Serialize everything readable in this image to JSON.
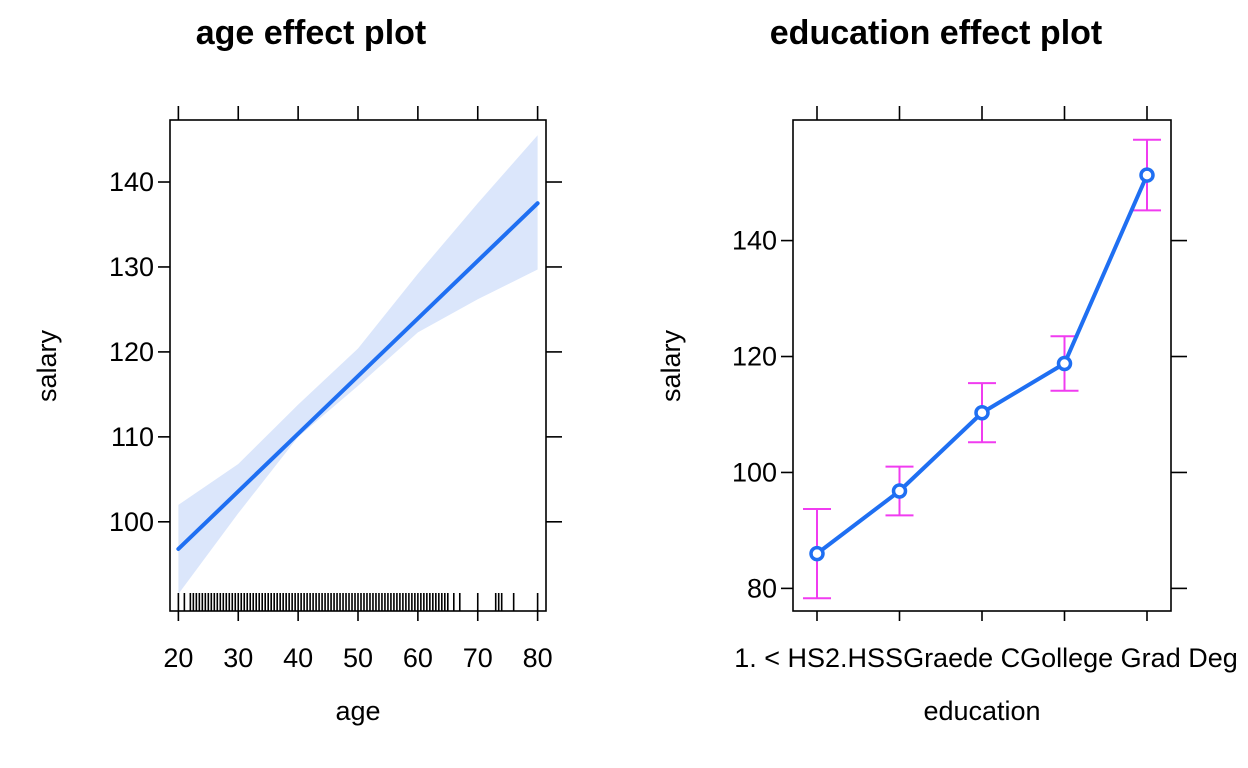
{
  "colors": {
    "line": "#1f6ff2",
    "band": "#dbe6fb",
    "error_bar": "#f03cf0",
    "frame": "#000000"
  },
  "chart_data": [
    {
      "type": "line",
      "title": "age effect plot",
      "xlabel": "age",
      "ylabel": "salary",
      "xlim": [
        18.6,
        81.4
      ],
      "ylim": [
        89.5,
        147.3
      ],
      "x_ticks": [
        20,
        30,
        40,
        50,
        60,
        70,
        80
      ],
      "y_ticks": [
        100,
        110,
        120,
        130,
        140
      ],
      "series": [
        {
          "x": [
            20,
            80
          ],
          "y": [
            96.8,
            137.5
          ],
          "band_x": [
            20,
            30,
            40,
            50,
            60,
            70,
            80
          ],
          "band_lower": [
            91.5,
            101.0,
            110.0,
            116.0,
            122.3,
            126.2,
            129.7
          ],
          "band_upper": [
            102.0,
            106.8,
            113.8,
            120.4,
            129.2,
            137.5,
            145.5
          ]
        }
      ],
      "rug": [
        20,
        21,
        22,
        22.5,
        23,
        23.5,
        24,
        24.5,
        25,
        25.5,
        26,
        26.5,
        27,
        27.5,
        28,
        28.5,
        29,
        29.5,
        30,
        30.5,
        31,
        31.5,
        32,
        32.5,
        33,
        33.5,
        34,
        34.5,
        35,
        35.5,
        36,
        36.5,
        37,
        37.5,
        38,
        38.5,
        39,
        39.5,
        40,
        40.5,
        41,
        41.5,
        42,
        42.5,
        43,
        43.5,
        44,
        44.5,
        45,
        45.5,
        46,
        46.5,
        47,
        47.5,
        48,
        48.5,
        49,
        49.5,
        50,
        50.5,
        51,
        51.5,
        52,
        52.5,
        53,
        53.5,
        54,
        54.5,
        55,
        55.5,
        56,
        56.5,
        57,
        57.5,
        58,
        58.5,
        59,
        59.5,
        60,
        60.5,
        61,
        61.5,
        62,
        62.5,
        63,
        63.5,
        64,
        64.5,
        65,
        66,
        67,
        70,
        73,
        73.5,
        74,
        76,
        80
      ],
      "grid": false,
      "legend": "none"
    },
    {
      "type": "line",
      "title": "education effect plot",
      "xlabel": "education",
      "ylabel": "salary",
      "categories": [
        "1. < HS Grad",
        "2. HS Grad",
        "3. Some College",
        "4. College Grad",
        "5. Advanced Degree"
      ],
      "visible_tick_text": "1. < HS2.HSSGraede CGollege Grad Deg",
      "ylim": [
        76.1,
        160.8
      ],
      "y_ticks": [
        80,
        100,
        120,
        140
      ],
      "series": [
        {
          "values": [
            86.0,
            96.8,
            110.3,
            118.8,
            151.3
          ],
          "lower": [
            78.3,
            92.6,
            105.2,
            114.1,
            145.2
          ],
          "upper": [
            93.7,
            101.0,
            115.4,
            123.5,
            157.4
          ]
        }
      ],
      "grid": false,
      "legend": "none"
    }
  ]
}
